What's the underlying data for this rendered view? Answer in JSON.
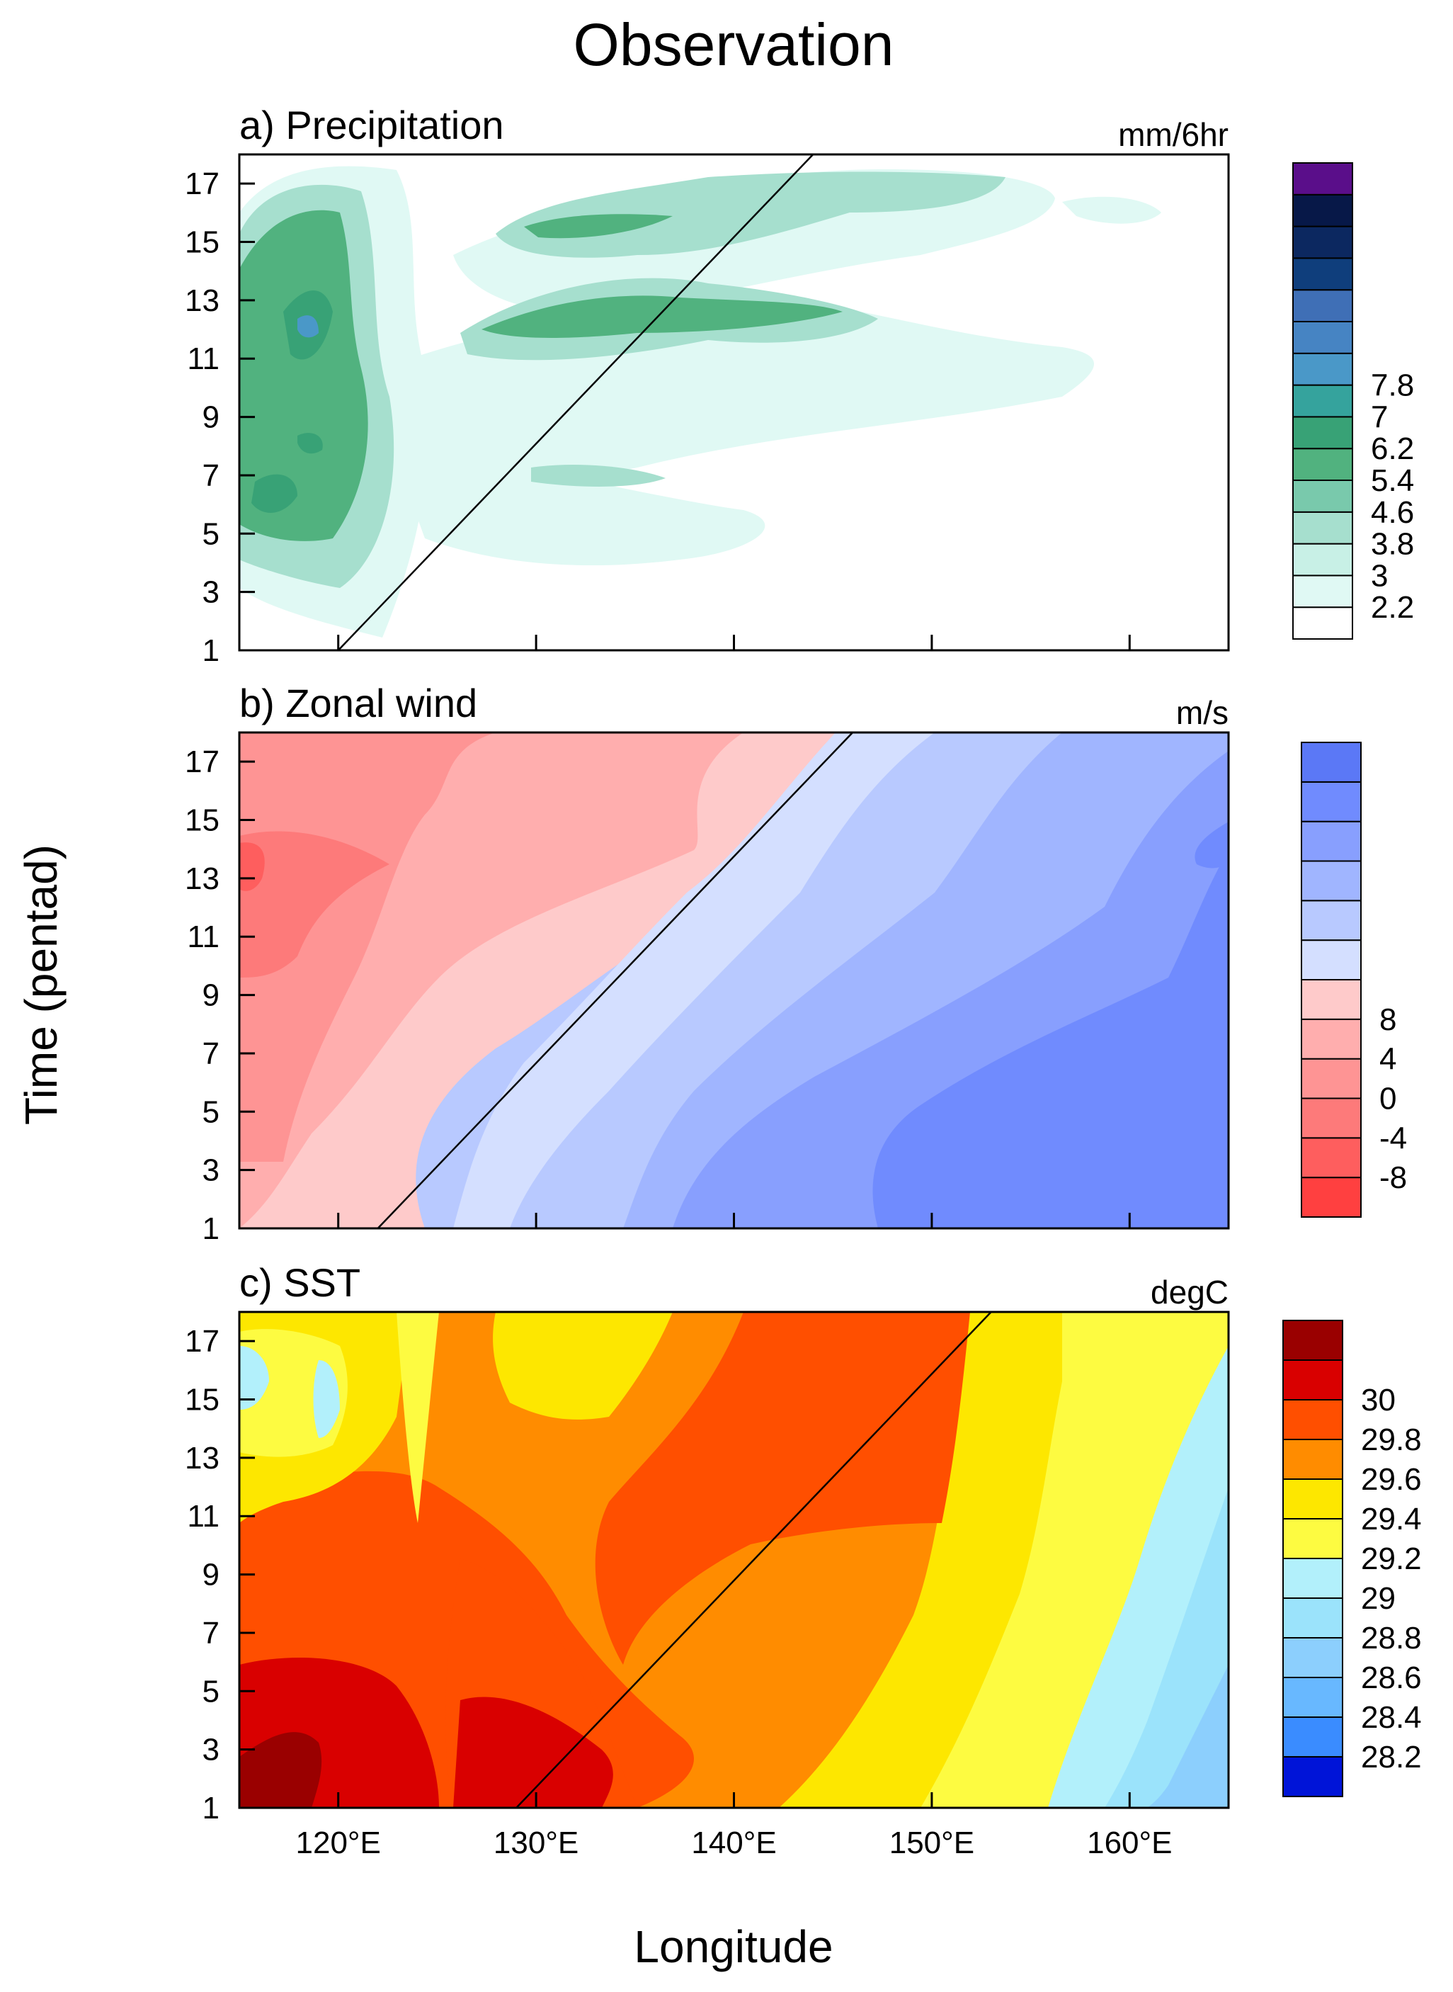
{
  "figure": {
    "title": "Observation",
    "ylabel": "Time (pentad)",
    "xlabel": "Longitude"
  },
  "chart_data": [
    {
      "type": "heatmap",
      "title": "a) Precipitation",
      "units": "mm/6hr",
      "x_ticks": [
        "120°E",
        "130°E",
        "140°E",
        "150°E",
        "160°E"
      ],
      "x_tick_values": [
        120,
        130,
        140,
        150,
        160
      ],
      "xlim": [
        115,
        165
      ],
      "y_ticks": [
        "1",
        "3",
        "5",
        "7",
        "9",
        "11",
        "13",
        "15",
        "17"
      ],
      "ylim": [
        1,
        18
      ],
      "colorbar_labels": [
        "7.8",
        "7",
        "6.2",
        "5.4",
        "4.6",
        "3.8",
        "3",
        "2.2"
      ],
      "colorbar_colors": [
        "#ffffff",
        "#e0f9f4",
        "#c8f0e6",
        "#a6dfce",
        "#79c9ac",
        "#51b27f",
        "#38a276",
        "#35a39d",
        "#4a98c8",
        "#4684c3",
        "#3f6fb6",
        "#0f3e7c",
        "#0c2860",
        "#071848",
        "#5a0e8a"
      ],
      "reference_line": {
        "from": [
          120,
          1
        ],
        "to": [
          144,
          18
        ]
      },
      "background": "#ffffff"
    },
    {
      "type": "heatmap",
      "title": "b) Zonal wind",
      "units": "m/s",
      "x_ticks": [
        "120°E",
        "130°E",
        "140°E",
        "150°E",
        "160°E"
      ],
      "x_tick_values": [
        120,
        130,
        140,
        150,
        160
      ],
      "xlim": [
        115,
        165
      ],
      "y_ticks": [
        "1",
        "3",
        "5",
        "7",
        "9",
        "11",
        "13",
        "15",
        "17"
      ],
      "ylim": [
        1,
        18
      ],
      "colorbar_labels": [
        "8",
        "4",
        "0",
        "-4",
        "-8"
      ],
      "colorbar_colors": [
        "#ff4040",
        "#fe5e5e",
        "#fd7a7a",
        "#fe9494",
        "#ffaeae",
        "#fecaca",
        "#d4dfff",
        "#b8c9ff",
        "#a0b5ff",
        "#889ffe",
        "#708bfe",
        "#5b78f6"
      ],
      "reference_line": {
        "from": [
          122,
          1
        ],
        "to": [
          146,
          18
        ]
      },
      "background": "#ffcaca"
    },
    {
      "type": "heatmap",
      "title": "c) SST",
      "units": "degC",
      "x_ticks": [
        "120°E",
        "130°E",
        "140°E",
        "150°E",
        "160°E"
      ],
      "x_tick_values": [
        120,
        130,
        140,
        150,
        160
      ],
      "xlim": [
        115,
        165
      ],
      "y_ticks": [
        "1",
        "3",
        "5",
        "7",
        "9",
        "11",
        "13",
        "15",
        "17"
      ],
      "ylim": [
        1,
        18
      ],
      "colorbar_labels": [
        "30",
        "29.8",
        "29.6",
        "29.4",
        "29.2",
        "29",
        "28.8",
        "28.6",
        "28.4",
        "28.2"
      ],
      "colorbar_colors": [
        "#0014d8",
        "#3a8cff",
        "#68b8ff",
        "#8ccffd",
        "#9be3fb",
        "#b2f0fb",
        "#fdfb41",
        "#fde700",
        "#ff8c00",
        "#ff4f00",
        "#d90000",
        "#9a0000"
      ],
      "reference_line": {
        "from": [
          129,
          1
        ],
        "to": [
          153,
          18
        ]
      },
      "background": "#ff8c00"
    }
  ]
}
